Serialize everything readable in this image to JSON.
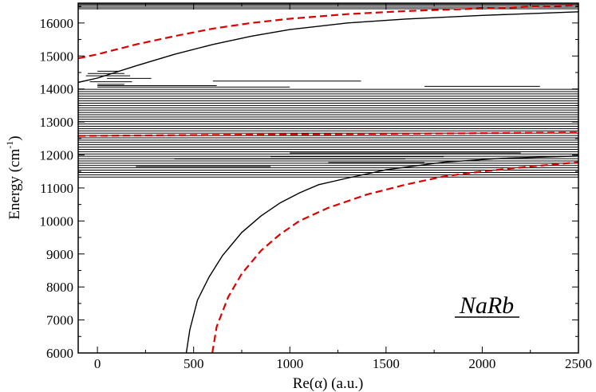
{
  "chart_data": {
    "type": "line",
    "xlabel_prefix": "Re(",
    "xlabel_symbol": "α",
    "xlabel_suffix": ") (a.u.)",
    "ylabel_main": "Energy (cm",
    "ylabel_sup": "-1",
    "ylabel_close": ")",
    "annotation": "NaRb",
    "xlim": [
      -100,
      2500
    ],
    "ylim": [
      6000,
      16600
    ],
    "x_ticks": [
      0,
      500,
      1000,
      1500,
      2000,
      2500
    ],
    "y_ticks": [
      6000,
      7000,
      8000,
      9000,
      10000,
      11000,
      12000,
      13000,
      14000,
      15000,
      16000
    ],
    "series": [
      {
        "color": "#000000",
        "dash": "solid",
        "points": [
          [
            -100,
            14200
          ],
          [
            0,
            14330
          ],
          [
            200,
            14700
          ],
          [
            400,
            15050
          ],
          [
            600,
            15350
          ],
          [
            800,
            15600
          ],
          [
            1000,
            15800
          ],
          [
            1300,
            16000
          ],
          [
            1600,
            16120
          ],
          [
            2000,
            16230
          ],
          [
            2500,
            16340
          ]
        ]
      },
      {
        "color": "#000000",
        "dash": "solid",
        "points": [
          [
            462,
            6000
          ],
          [
            480,
            6700
          ],
          [
            520,
            7600
          ],
          [
            580,
            8300
          ],
          [
            650,
            8950
          ],
          [
            750,
            9650
          ],
          [
            850,
            10150
          ],
          [
            950,
            10550
          ],
          [
            1050,
            10850
          ],
          [
            1150,
            11100
          ],
          [
            1300,
            11300
          ],
          [
            1500,
            11550
          ],
          [
            1800,
            11780
          ],
          [
            2100,
            11900
          ],
          [
            2500,
            11970
          ]
        ]
      },
      {
        "color": "#dd0000",
        "dash": "dashed",
        "points": [
          [
            -100,
            14930
          ],
          [
            0,
            15050
          ],
          [
            200,
            15350
          ],
          [
            400,
            15600
          ],
          [
            600,
            15830
          ],
          [
            800,
            16000
          ],
          [
            1000,
            16130
          ],
          [
            1300,
            16270
          ],
          [
            1600,
            16360
          ],
          [
            2000,
            16440
          ],
          [
            2500,
            16540
          ]
        ]
      },
      {
        "color": "#dd0000",
        "dash": "dashed",
        "points": [
          [
            597,
            6000
          ],
          [
            620,
            6800
          ],
          [
            680,
            7700
          ],
          [
            750,
            8400
          ],
          [
            850,
            9100
          ],
          [
            950,
            9600
          ],
          [
            1050,
            10000
          ],
          [
            1200,
            10400
          ],
          [
            1400,
            10800
          ],
          [
            1600,
            11100
          ],
          [
            1800,
            11350
          ],
          [
            2000,
            11500
          ],
          [
            2250,
            11650
          ],
          [
            2500,
            11780
          ]
        ]
      },
      {
        "color": "#dd0000",
        "dash": "dashed",
        "points": [
          [
            -100,
            12580
          ],
          [
            2500,
            12680
          ]
        ]
      }
    ],
    "levels_band": {
      "y_start": 11330,
      "y_end": 14000,
      "step": 70,
      "x_end_default": 2500
    },
    "levels_upper": [
      16430,
      16480,
      16530,
      16570
    ],
    "levels_short": [
      [
        14540,
        0,
        110
      ],
      [
        14470,
        -50,
        140
      ],
      [
        14400,
        -60,
        170
      ],
      [
        14320,
        50,
        280
      ],
      [
        14220,
        -40,
        180
      ],
      [
        14140,
        0,
        140
      ],
      [
        14060,
        0,
        1000
      ],
      [
        14100,
        0,
        620
      ],
      [
        14240,
        600,
        1370
      ],
      [
        14080,
        1700,
        2300
      ],
      [
        12060,
        1000,
        2200
      ],
      [
        11770,
        1200,
        1700
      ],
      [
        11880,
        400,
        1600
      ],
      [
        11950,
        900,
        1800
      ],
      [
        11650,
        200,
        900
      ]
    ]
  }
}
